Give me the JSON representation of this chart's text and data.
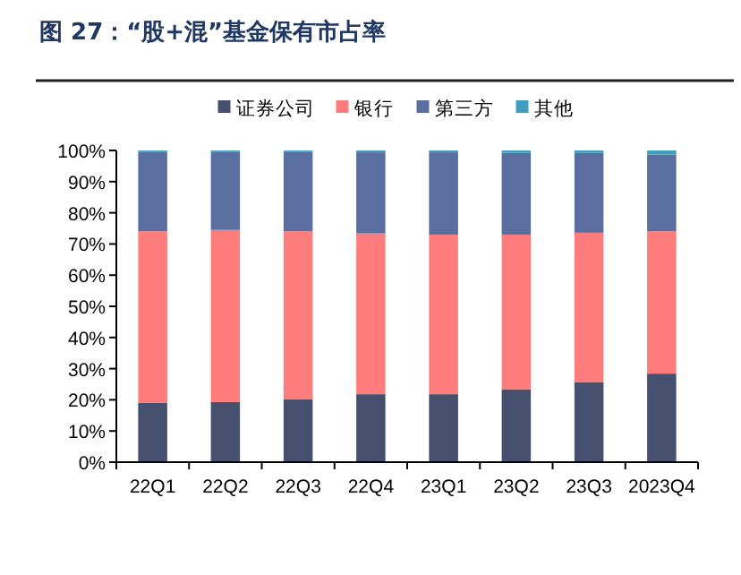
{
  "chart_data": {
    "type": "bar",
    "stacked": true,
    "title": "图 27：“股+混”基金保有市占率",
    "categories": [
      "22Q1",
      "22Q2",
      "22Q3",
      "22Q4",
      "23Q1",
      "23Q2",
      "23Q3",
      "2023Q4"
    ],
    "series": [
      {
        "name": "证券公司",
        "color": "#44506e",
        "values": [
          19.0,
          19.3,
          20.1,
          21.8,
          21.8,
          23.4,
          25.7,
          28.4
        ]
      },
      {
        "name": "银行",
        "color": "#ff7c7c",
        "values": [
          55.1,
          55.2,
          54.0,
          51.6,
          51.2,
          49.6,
          47.9,
          45.7
        ]
      },
      {
        "name": "第三方",
        "color": "#5b6ea0",
        "values": [
          25.5,
          25.1,
          25.5,
          26.0,
          26.4,
          26.2,
          25.6,
          24.6
        ]
      },
      {
        "name": "其他",
        "color": "#3f9fbf",
        "values": [
          0.4,
          0.4,
          0.4,
          0.6,
          0.6,
          0.8,
          0.8,
          1.3
        ]
      }
    ],
    "ylim": [
      0,
      100
    ],
    "yticks": [
      {
        "value": 0,
        "label": "0%"
      },
      {
        "value": 10,
        "label": "10%"
      },
      {
        "value": 20,
        "label": "20%"
      },
      {
        "value": 30,
        "label": "30%"
      },
      {
        "value": 40,
        "label": "40%"
      },
      {
        "value": 50,
        "label": "50%"
      },
      {
        "value": 60,
        "label": "60%"
      },
      {
        "value": 70,
        "label": "70%"
      },
      {
        "value": 80,
        "label": "80%"
      },
      {
        "value": 90,
        "label": "90%"
      },
      {
        "value": 100,
        "label": "100%"
      }
    ],
    "legend": "top"
  }
}
